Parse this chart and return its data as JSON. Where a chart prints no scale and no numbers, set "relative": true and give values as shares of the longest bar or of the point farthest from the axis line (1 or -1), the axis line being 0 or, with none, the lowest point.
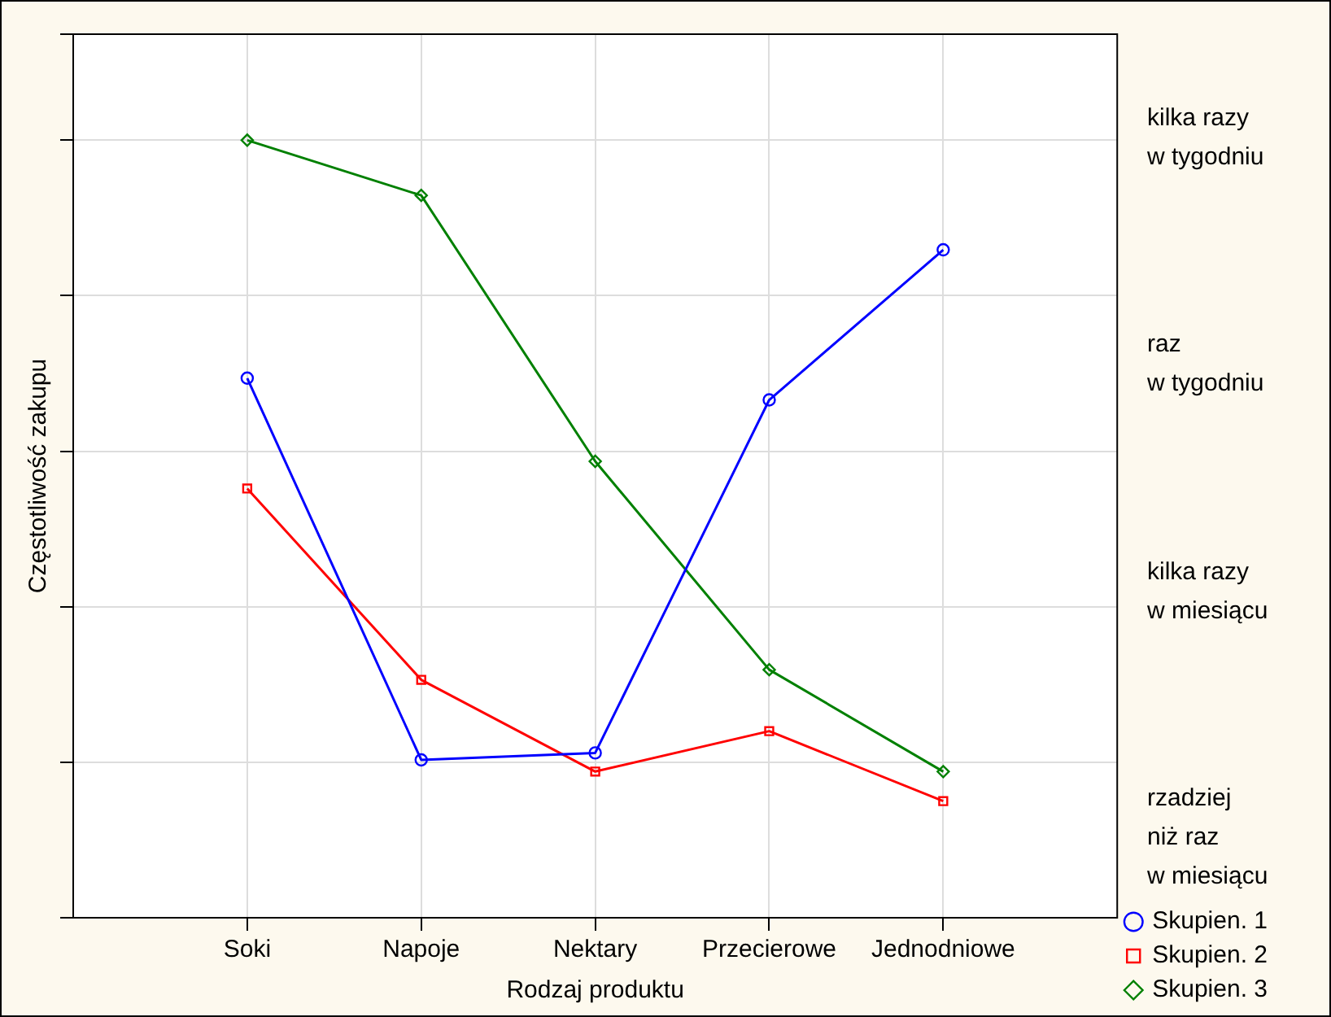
{
  "chart_data": {
    "type": "line",
    "relative": true,
    "xlabel": "Rodzaj produktu",
    "ylabel": "Częstotliwość zakupu",
    "categories": [
      "Soki",
      "Napoje",
      "Nektary",
      "Przecierowe",
      "Jednodniowe"
    ],
    "series": [
      {
        "name": "Skupien. 1",
        "color": "#0000ff",
        "marker": "circle",
        "values": [
          0.694,
          0.203,
          0.212,
          0.666,
          0.859
        ]
      },
      {
        "name": "Skupien. 2",
        "color": "#ff0000",
        "marker": "square",
        "values": [
          0.552,
          0.306,
          0.188,
          0.24,
          0.15
        ]
      },
      {
        "name": "Skupien. 3",
        "color": "#008000",
        "marker": "diamond",
        "values": [
          1,
          0.929,
          0.587,
          0.319,
          0.188
        ]
      }
    ],
    "annotations": [
      "kilka razy\nw tygodniu",
      "raz\nw tygodniu",
      "kilka razy\nw miesiącu",
      "rzadziej\nniż raz\nw miesiącu"
    ],
    "grid": true,
    "legend": "bottom right",
    "line_style": "solid"
  }
}
